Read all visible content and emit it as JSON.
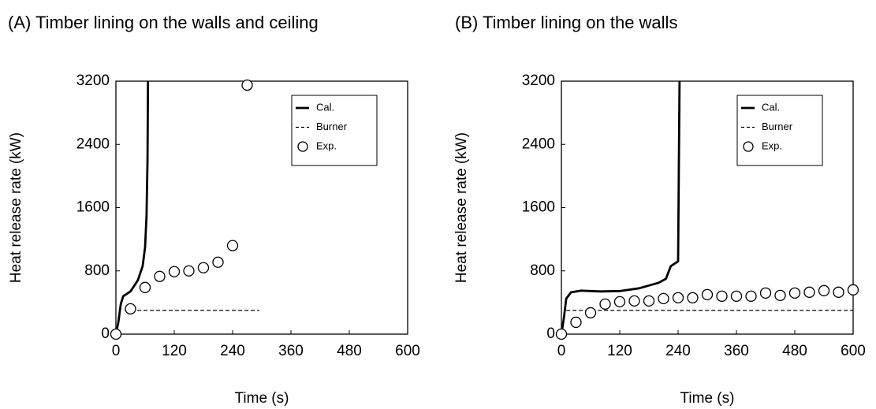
{
  "chart_data": [
    {
      "type": "line",
      "title": "(A) Timber lining on the walls and ceiling",
      "x_label": "Time (s)",
      "y_label": "Heat release rate (kW)",
      "xlim": [
        0,
        600
      ],
      "ylim": [
        0,
        3200
      ],
      "xticks": [
        0,
        120,
        240,
        360,
        480,
        600
      ],
      "yticks": [
        0,
        800,
        1600,
        2400,
        3200
      ],
      "series": [
        {
          "name": "Cal.",
          "color": "#000000",
          "style": "solid",
          "x": [
            0,
            5,
            10,
            15,
            30,
            45,
            55,
            60,
            63,
            65,
            66
          ],
          "values": [
            0,
            150,
            380,
            480,
            540,
            680,
            860,
            1100,
            1500,
            2200,
            3200
          ]
        },
        {
          "name": "Burner",
          "color": "#000000",
          "style": "dashed",
          "x": [
            18,
            295
          ],
          "values": [
            300,
            300
          ]
        },
        {
          "name": "Exp.",
          "color": "#000000",
          "style": "marker",
          "x": [
            0,
            30,
            60,
            90,
            120,
            150,
            180,
            210,
            240,
            270
          ],
          "values": [
            0,
            320,
            590,
            730,
            790,
            800,
            840,
            910,
            1120,
            3150
          ]
        }
      ]
    },
    {
      "type": "line",
      "title": "(B) Timber lining on the walls",
      "x_label": "Time (s)",
      "y_label": "Heat release rate (kW)",
      "xlim": [
        0,
        600
      ],
      "ylim": [
        0,
        3200
      ],
      "xticks": [
        0,
        120,
        240,
        360,
        480,
        600
      ],
      "yticks": [
        0,
        800,
        1600,
        2400,
        3200
      ],
      "series": [
        {
          "name": "Cal.",
          "color": "#000000",
          "style": "solid",
          "x": [
            0,
            5,
            10,
            20,
            40,
            80,
            120,
            160,
            200,
            215,
            225,
            235,
            240,
            243
          ],
          "values": [
            0,
            200,
            450,
            530,
            550,
            540,
            545,
            580,
            650,
            700,
            860,
            900,
            920,
            3200
          ]
        },
        {
          "name": "Burner",
          "color": "#000000",
          "style": "dashed",
          "x": [
            10,
            600
          ],
          "values": [
            300,
            300
          ]
        },
        {
          "name": "Exp.",
          "color": "#000000",
          "style": "marker",
          "x": [
            0,
            30,
            60,
            90,
            120,
            150,
            180,
            210,
            240,
            270,
            300,
            330,
            360,
            390,
            420,
            450,
            480,
            510,
            540,
            570,
            600
          ],
          "values": [
            0,
            150,
            270,
            380,
            410,
            420,
            420,
            450,
            460,
            460,
            500,
            480,
            480,
            480,
            520,
            490,
            520,
            530,
            550,
            530,
            560
          ]
        }
      ]
    }
  ]
}
